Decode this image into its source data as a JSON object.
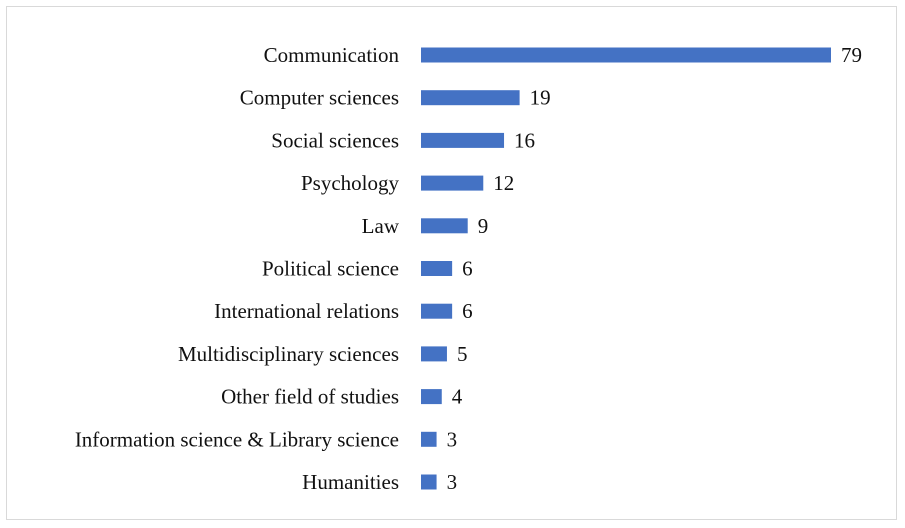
{
  "chart_data": {
    "type": "bar",
    "orientation": "horizontal",
    "title": "",
    "xlabel": "",
    "ylabel": "",
    "grid": false,
    "legend": "none",
    "bar_color": "#4472c4",
    "categories": [
      "Communication",
      "Computer sciences",
      "Social sciences",
      "Psychology",
      "Law",
      "Political science",
      "International relations",
      "Multidisciplinary sciences",
      "Other field of studies",
      "Information science & Library science",
      "Humanities"
    ],
    "values": [
      79,
      19,
      16,
      12,
      9,
      6,
      6,
      5,
      4,
      3,
      3
    ],
    "xlim": [
      0,
      79
    ]
  }
}
